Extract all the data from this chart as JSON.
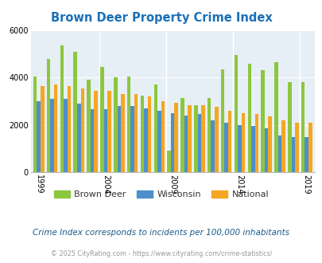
{
  "title": "Brown Deer Property Crime Index",
  "years_data": [
    1999,
    2000,
    2001,
    2002,
    2003,
    2004,
    2005,
    2006,
    2007,
    2008,
    2009,
    2010,
    2011,
    2012,
    2013,
    2014,
    2015,
    2016,
    2017,
    2018,
    2019
  ],
  "brown_deer": [
    4050,
    4800,
    5350,
    5100,
    3900,
    4450,
    4000,
    4050,
    3250,
    3700,
    900,
    3150,
    2850,
    3150,
    4350,
    4950,
    4600,
    4300,
    4650,
    3800,
    3800
  ],
  "wisconsin": [
    3000,
    3100,
    3100,
    2900,
    2650,
    2650,
    2800,
    2800,
    2700,
    2600,
    2500,
    2400,
    2450,
    2200,
    2100,
    2000,
    1950,
    1850,
    1550,
    1500,
    1500
  ],
  "national": [
    3650,
    3700,
    3650,
    3550,
    3450,
    3450,
    3300,
    3300,
    3200,
    3000,
    2950,
    2850,
    2850,
    2750,
    2600,
    2500,
    2450,
    2350,
    2200,
    2100,
    2100
  ],
  "colors": {
    "brown_deer": "#8dc63f",
    "wisconsin": "#4d8fcc",
    "national": "#f5a623"
  },
  "bg_color": "#e5eff5",
  "ylim": [
    0,
    6000
  ],
  "yticks": [
    0,
    2000,
    4000,
    6000
  ],
  "label_years": [
    1999,
    2004,
    2009,
    2014,
    2019
  ],
  "subtitle": "Crime Index corresponds to incidents per 100,000 inhabitants",
  "footer": "© 2025 CityRating.com - https://www.cityrating.com/crime-statistics/",
  "title_color": "#1a70b8",
  "subtitle_color": "#1a5a8a",
  "footer_color": "#999999",
  "bar_width": 0.27
}
